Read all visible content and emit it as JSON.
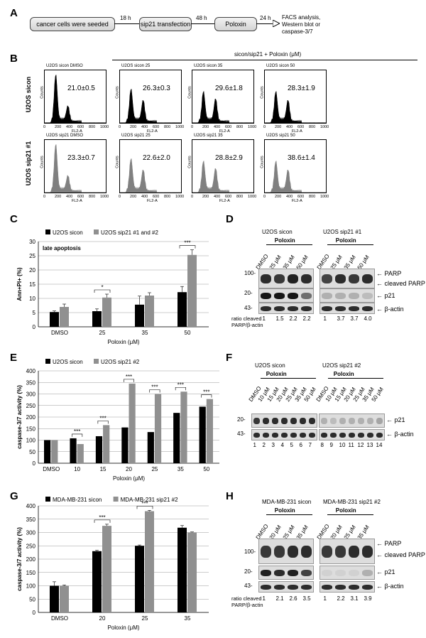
{
  "panels": {
    "A": "A",
    "B": "B",
    "C": "C",
    "D": "D",
    "E": "E",
    "F": "F",
    "G": "G",
    "H": "H"
  },
  "panelA": {
    "steps": [
      "cancer cells were seeded",
      "sip21 transfection",
      "Poloxin"
    ],
    "intervals": [
      "18 h",
      "48 h",
      "24 h"
    ],
    "end": [
      "FACS analysis,",
      "Western blot or",
      "caspase-3/7"
    ]
  },
  "panelB": {
    "header": "sicon/sip21 + Poloxin (μM)",
    "row_labels": [
      "U2OS sicon",
      "U2OS sip21 #1"
    ],
    "row1": [
      {
        "title": "U2OS sicon DMSO",
        "value": "21.0±0.5"
      },
      {
        "title": "U2OS sicon 25",
        "value": "26.3±0.3"
      },
      {
        "title": "U2OS sicon 35",
        "value": "29.6±1.8"
      },
      {
        "title": "U2OS sicon 50",
        "value": "28.3±1.9"
      }
    ],
    "row2": [
      {
        "title": "U2OS sip21 DMSO",
        "value": "23.3±0.7"
      },
      {
        "title": "U2OS sip21 25",
        "value": "22.6±2.0"
      },
      {
        "title": "U2OS sip21 35",
        "value": "28.8±2.9"
      },
      {
        "title": "U2OS sip21 50",
        "value": "38.6±1.4"
      }
    ],
    "xticks": [
      "0",
      "200",
      "400",
      "600",
      "800",
      "1000"
    ],
    "xlabel": "FL2-A",
    "ylabel": "Counts",
    "colors": {
      "sicon": "#000000",
      "sip21": "#808080"
    }
  },
  "panelC": {
    "chart_data": {
      "type": "bar",
      "legend": [
        "U2OS sicon",
        "U2OS sip21 #1 and #2"
      ],
      "annotation": "late apoptosis",
      "ylabel": "Ann+PI+ (%)",
      "xlabel": "Poloxin (μM)",
      "categories": [
        "DMSO",
        "25",
        "35",
        "50"
      ],
      "series": [
        {
          "name": "U2OS sicon",
          "values": [
            5.2,
            5.5,
            7.8,
            12.2
          ],
          "errors": [
            0.4,
            0.8,
            3.0,
            2.0
          ],
          "color": "#000000"
        },
        {
          "name": "U2OS sip21 #1 and #2",
          "values": [
            7.0,
            10.3,
            11.0,
            25.3
          ],
          "errors": [
            1.0,
            1.2,
            1.0,
            1.8
          ],
          "color": "#909090"
        }
      ],
      "yticks": [
        "0",
        "5",
        "10",
        "15",
        "20",
        "25",
        "30"
      ],
      "ylim": [
        0,
        30
      ],
      "significance": [
        {
          "category": "25",
          "label": "*"
        },
        {
          "category": "50",
          "label": "***"
        }
      ]
    }
  },
  "panelD": {
    "groups": [
      "U2OS sicon",
      "U2OS sip21 #1"
    ],
    "poloxin": "Poloxin",
    "lanes": [
      "DMSO",
      "25 μM",
      "35 μM",
      "50 μM",
      "DMSO",
      "25 μM",
      "35 μM",
      "50 μM"
    ],
    "markers": [
      "100-",
      "20-",
      "43-"
    ],
    "bands": [
      "PARP",
      "cleaved PARP",
      "p21",
      "β-actin"
    ],
    "ratio_label": [
      "ratio cleaved",
      "PARP/β-actin"
    ],
    "ratios": [
      "1",
      "1.5",
      "2.2",
      "2.2",
      "1",
      "3.7",
      "3.7",
      "4.0"
    ]
  },
  "panelE": {
    "chart_data": {
      "type": "bar",
      "legend": [
        "U2OS sicon",
        "U2OS sip21 #2"
      ],
      "ylabel": "caspase-3/7 activity (%)",
      "xlabel": "Poloxin (μM)",
      "categories": [
        "DMSO",
        "10",
        "15",
        "20",
        "25",
        "35",
        "50"
      ],
      "series": [
        {
          "name": "U2OS sicon",
          "values": [
            100,
            108,
            117,
            155,
            135,
            218,
            245
          ],
          "color": "#000000"
        },
        {
          "name": "U2OS sip21 #2",
          "values": [
            100,
            83,
            165,
            345,
            300,
            310,
            278
          ],
          "color": "#909090"
        }
      ],
      "yticks": [
        "0",
        "50",
        "100",
        "150",
        "200",
        "250",
        "300",
        "350",
        "400"
      ],
      "ylim": [
        0,
        400
      ],
      "significance": [
        {
          "category": "10",
          "label": "***"
        },
        {
          "category": "15",
          "label": "***"
        },
        {
          "category": "20",
          "label": "***"
        },
        {
          "category": "25",
          "label": "***"
        },
        {
          "category": "35",
          "label": "***"
        },
        {
          "category": "50",
          "label": "***"
        }
      ]
    }
  },
  "panelF": {
    "groups": [
      "U2OS sicon",
      "U2OS sip21 #2"
    ],
    "poloxin": "Poloxin",
    "lanes": [
      "DMSO",
      "10 μM",
      "15 μM",
      "20 μM",
      "25 μM",
      "35 μM",
      "50 μM",
      "DMSO",
      "10 μM",
      "15 μM",
      "20 μM",
      "25 μM",
      "35 μM",
      "50 μM"
    ],
    "markers": [
      "20-",
      "43-"
    ],
    "bands": [
      "p21",
      "β-actin"
    ],
    "numbers": [
      "1",
      "2",
      "3",
      "4",
      "5",
      "6",
      "7",
      "8",
      "9",
      "10",
      "11",
      "12",
      "13",
      "14"
    ]
  },
  "panelG": {
    "chart_data": {
      "type": "bar",
      "legend": [
        "MDA-MB-231 sicon",
        "MDA-MB-231 sip21 #2"
      ],
      "ylabel": "caspase-3/7 activity (%)",
      "xlabel": "Poloxin (μM)",
      "categories": [
        "DMSO",
        "20",
        "25",
        "35"
      ],
      "series": [
        {
          "name": "MDA-MB-231 sicon",
          "values": [
            100,
            230,
            250,
            318
          ],
          "errors": [
            15,
            3,
            3,
            8
          ],
          "color": "#000000"
        },
        {
          "name": "MDA-MB-231 sip21 #2",
          "values": [
            100,
            325,
            380,
            300
          ],
          "errors": [
            3,
            6,
            3,
            2
          ],
          "color": "#909090"
        }
      ],
      "yticks": [
        "0",
        "50",
        "100",
        "150",
        "200",
        "250",
        "300",
        "350",
        "400"
      ],
      "ylim": [
        0,
        400
      ],
      "significance": [
        {
          "category": "20",
          "label": "***"
        },
        {
          "category": "25",
          "label": "***"
        }
      ]
    }
  },
  "panelH": {
    "groups": [
      "MDA-MB-231 sicon",
      "MDA-MB-231 sip21 #2"
    ],
    "poloxin": "Poloxin",
    "lanes": [
      "DMSO",
      "20 μM",
      "25 μM",
      "35 μM",
      "DMSO",
      "20 μM",
      "25 μM",
      "35 μM"
    ],
    "markers": [
      "100-",
      "20-",
      "43-"
    ],
    "bands": [
      "PARP",
      "cleaved PARP",
      "p21",
      "β-actin"
    ],
    "ratio_label": [
      "ratio cleaved",
      "PARP/β-actin"
    ],
    "ratios": [
      "1",
      "2.1",
      "2.6",
      "3.5",
      "1",
      "2.2",
      "3.1",
      "3.9"
    ]
  }
}
